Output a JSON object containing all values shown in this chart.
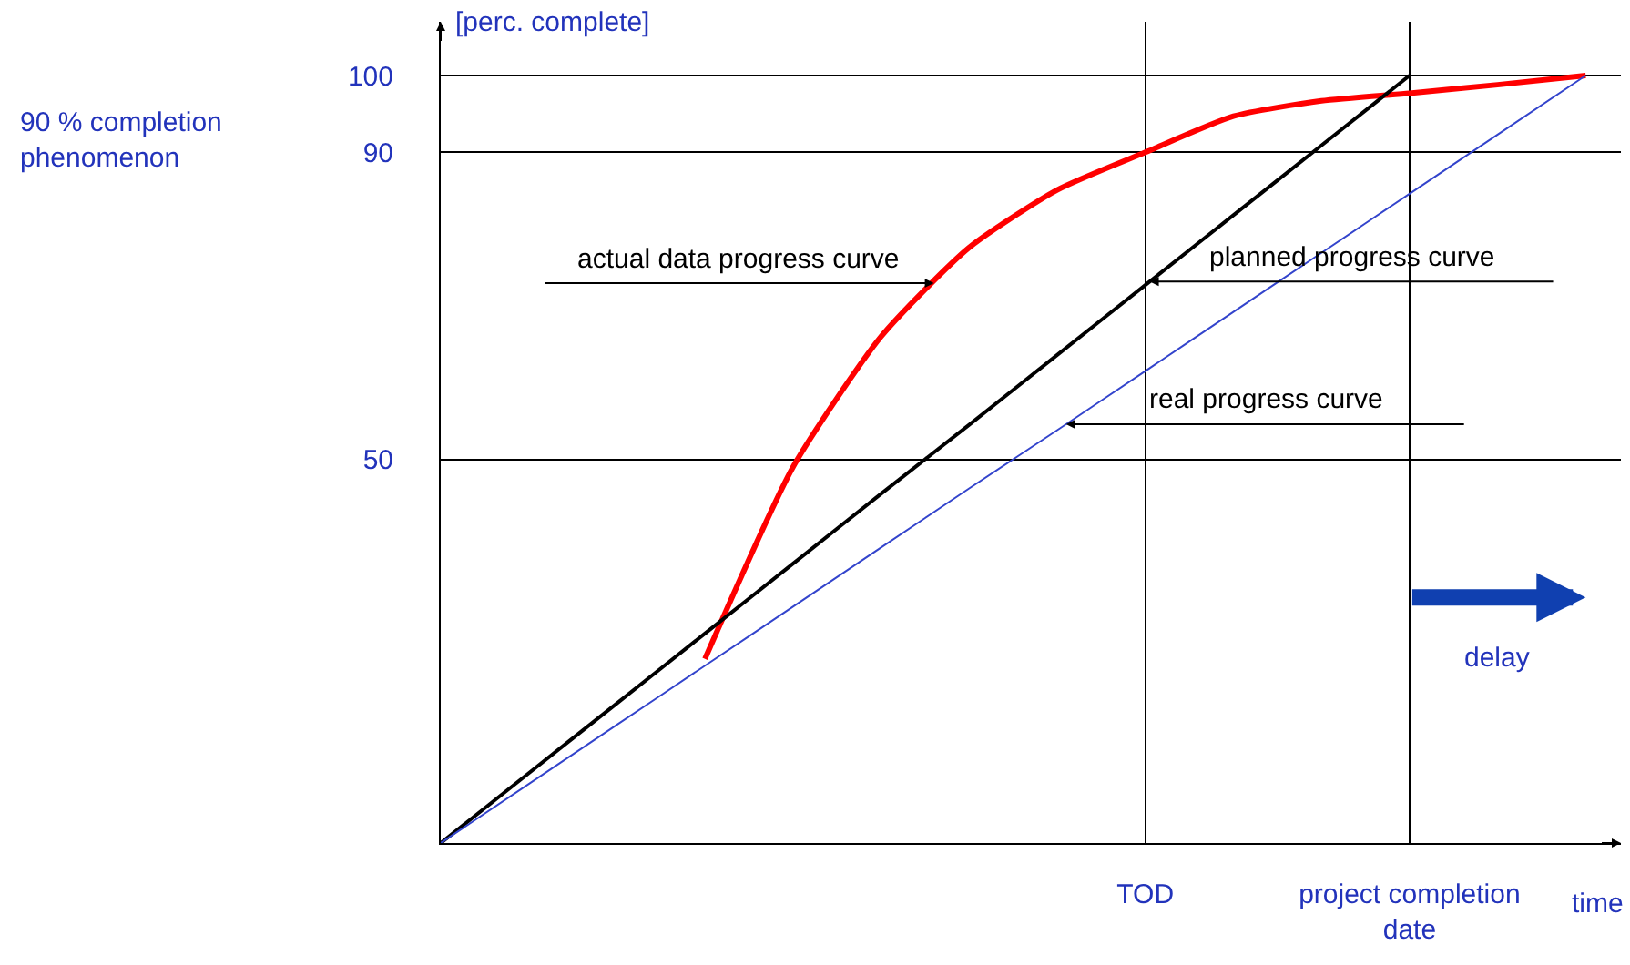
{
  "chart_data": {
    "type": "line",
    "ylabel": "[perc. complete]",
    "xlabel": "time",
    "annotations": [
      "90 % completion phenomenon",
      "delay"
    ],
    "categories": [
      null,
      null,
      null,
      null,
      null,
      null,
      null,
      null,
      "TOD",
      null,
      null,
      "project completion date",
      null,
      null
    ],
    "series": [
      {
        "name": "actual data progress curve",
        "color": "#ff0000",
        "values": [
          null,
          null,
          null,
          24,
          49,
          66,
          77.6,
          85.1,
          90,
          94.7,
          96.7,
          97.7,
          98.8,
          100
        ]
      },
      {
        "name": "planned progress curve",
        "color": "#000000",
        "values": [
          0,
          9.1,
          18.2,
          27.3,
          36.4,
          45.5,
          54.5,
          63.6,
          72.7,
          81.8,
          90.9,
          100,
          null,
          null
        ]
      },
      {
        "name": "real progress curve",
        "color": "#3344cc",
        "values": [
          0,
          7.7,
          15.4,
          23.1,
          30.8,
          38.5,
          46.2,
          53.8,
          61.5,
          69.2,
          76.9,
          84.6,
          92.3,
          100
        ]
      }
    ],
    "ylim": [
      0,
      107
    ],
    "yticks": [
      50,
      90,
      100
    ],
    "grid": true,
    "legend": false,
    "marker": "none",
    "line_style": "solid"
  }
}
